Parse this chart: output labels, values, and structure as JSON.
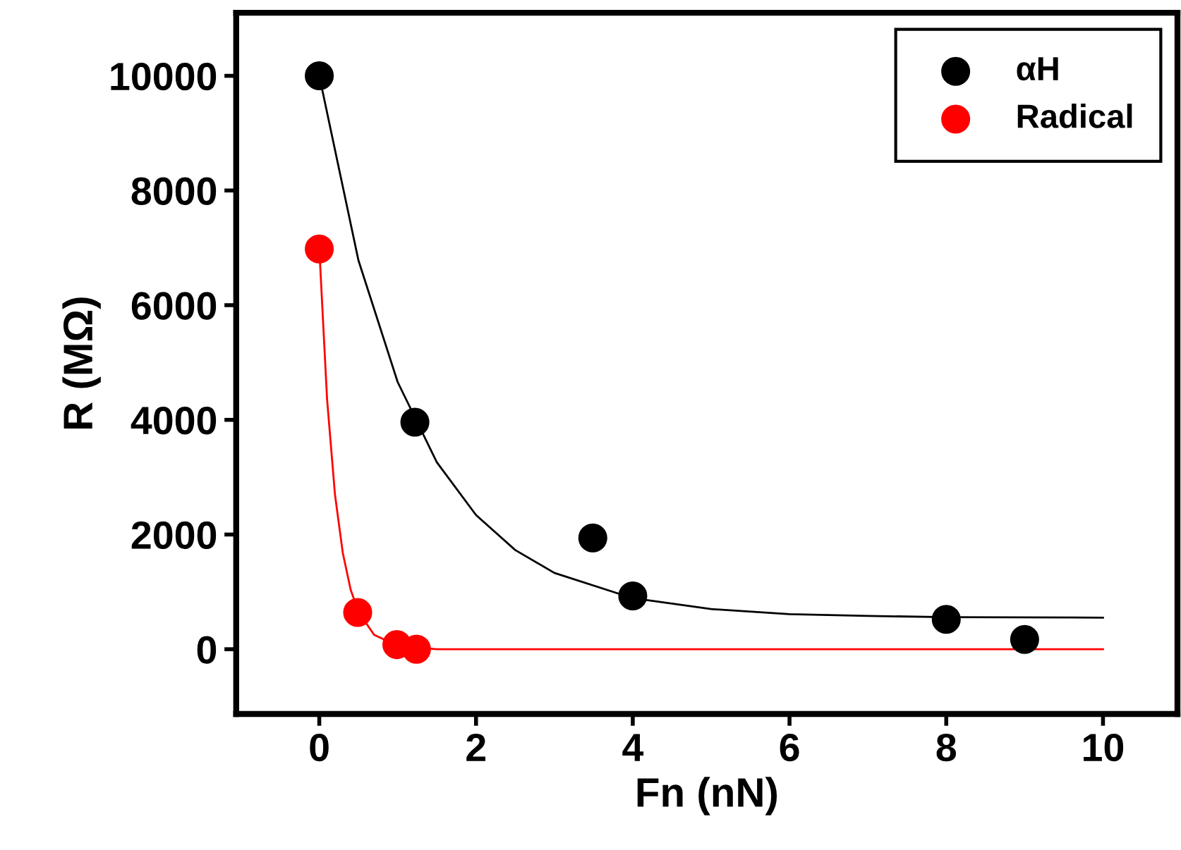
{
  "chart_data": {
    "type": "scatter",
    "xlabel": "Fn (nN)",
    "ylabel": "R (MΩ)",
    "xlim": [
      -1.06,
      10.95
    ],
    "ylim": [
      -1130,
      11100
    ],
    "xticks": [
      0,
      2,
      4,
      6,
      8,
      10
    ],
    "yticks": [
      0,
      2000,
      4000,
      6000,
      8000,
      10000
    ],
    "legend": "top right",
    "grid": false,
    "series": [
      {
        "name": "αH",
        "color": "#000000",
        "marker": "circle",
        "x": [
          0,
          1.22,
          3.49,
          4,
          8,
          9
        ],
        "values": [
          10000,
          3960,
          1940,
          930,
          520,
          170
        ]
      },
      {
        "name": "Radical",
        "color": "#ff0000",
        "marker": "circle",
        "x": [
          0,
          0.49,
          0.99,
          1.24
        ],
        "values": [
          6980,
          640,
          80,
          0
        ]
      },
      {
        "type": "line",
        "marker": "none",
        "color": "#000000",
        "x": [
          0,
          0.5,
          1,
          1.5,
          2,
          2.5,
          3,
          4,
          5,
          6,
          7,
          8,
          10
        ],
        "values": [
          10000,
          6780,
          4660,
          3260,
          2340,
          1730,
          1330,
          890,
          700,
          610,
          580,
          560,
          550
        ]
      },
      {
        "type": "line",
        "marker": "none",
        "color": "#ff0000",
        "x": [
          0,
          0.1,
          0.2,
          0.3,
          0.4,
          0.5,
          0.7,
          1,
          1.5,
          10
        ],
        "values": [
          7000,
          4350,
          2700,
          1680,
          1040,
          650,
          250,
          60,
          0,
          0
        ]
      }
    ]
  }
}
